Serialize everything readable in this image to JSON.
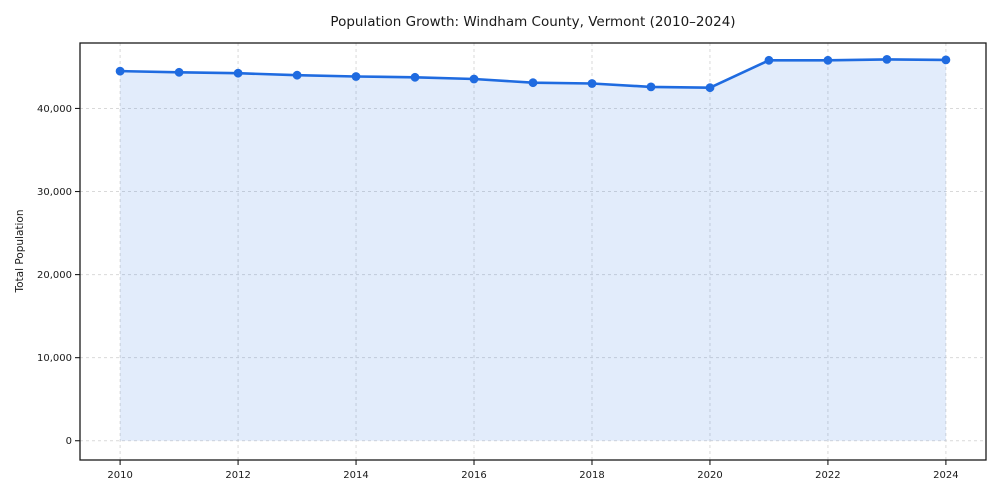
{
  "figure": {
    "title": "Population Growth: Windham County, Vermont (2010–2024)",
    "ylabel": "Total Population"
  },
  "chart_data": {
    "type": "area",
    "title": "Population Growth: Windham County, Vermont (2010–2024)",
    "xlabel": "",
    "ylabel": "Total Population",
    "x": [
      2010,
      2011,
      2012,
      2013,
      2014,
      2015,
      2016,
      2017,
      2018,
      2019,
      2020,
      2021,
      2022,
      2023,
      2024
    ],
    "series": [
      {
        "name": "Total Population",
        "values": [
          44500,
          44350,
          44250,
          44000,
          43850,
          43750,
          43550,
          43100,
          43000,
          42600,
          42500,
          45800,
          45800,
          45900,
          45850
        ]
      }
    ],
    "xticks": [
      2010,
      2012,
      2014,
      2016,
      2018,
      2020,
      2022,
      2024
    ],
    "xtick_labels": [
      "2010",
      "2012",
      "2014",
      "2016",
      "2018",
      "2020",
      "2022",
      "2024"
    ],
    "yticks": [
      0,
      10000,
      20000,
      30000,
      40000
    ],
    "ytick_labels": [
      "0",
      "10,000",
      "20,000",
      "30,000",
      "40,000"
    ],
    "xlim": [
      2009.32,
      2024.68
    ],
    "ylim": [
      -2320,
      47880
    ],
    "baseline": 0,
    "grid": true,
    "grid_style": "dashed",
    "legend_position": "none",
    "line_color": "#1f6be0",
    "fill_color": "rgba(31,107,224,0.13)",
    "grid_color": "#d9d9d9",
    "axis_color": "#1a1a1a",
    "tick_label_color": "#1a1a1a",
    "marker": "circle"
  }
}
